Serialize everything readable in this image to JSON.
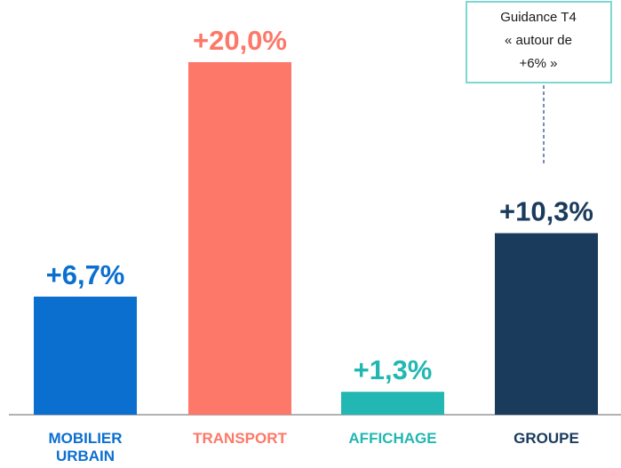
{
  "chart_data": {
    "type": "bar",
    "categories": [
      "MOBILIER URBAIN",
      "TRANSPORT",
      "AFFICHAGE",
      "GROUPE"
    ],
    "values": [
      6.7,
      20.0,
      1.3,
      10.3
    ],
    "value_labels": [
      "+6,7%",
      "+20,0%",
      "+1,3%",
      "+10,3%"
    ],
    "colors": [
      "#0b6fd0",
      "#fd7868",
      "#22b7b2",
      "#1b3b5d"
    ],
    "annotation": [
      "Guidance T4",
      "« autour de",
      "+6% »"
    ]
  }
}
